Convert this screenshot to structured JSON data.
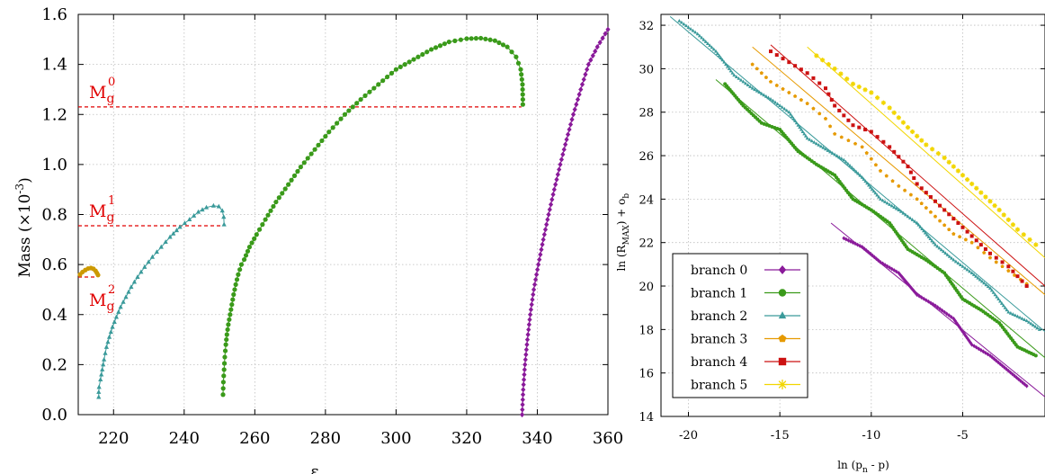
{
  "chart_data": [
    {
      "type": "scatter",
      "xlabel": "ε",
      "ylabel_main": "Mass (×10",
      "ylabel_exp": "-3",
      "ylabel_close": ")",
      "xlim": [
        210,
        360
      ],
      "ylim": [
        0,
        1.6
      ],
      "xticks": [
        220,
        240,
        260,
        280,
        300,
        320,
        340,
        360
      ],
      "yticks": [
        0.0,
        0.2,
        0.4,
        0.6,
        0.8,
        1.0,
        1.2,
        1.4,
        1.6
      ],
      "ytick_labels": [
        "0.0",
        "0.2",
        "0.4",
        "0.6",
        "0.8",
        "1.0",
        "1.2",
        "1.4",
        "1.6"
      ],
      "grid": true,
      "reference_lines": [
        {
          "label_main": "M",
          "label_sub": "g",
          "label_sup": "0",
          "value": 1.23,
          "x_start": 210,
          "x_end": 335.5,
          "color": "#e00000"
        },
        {
          "label_main": "M",
          "label_sub": "g",
          "label_sup": "1",
          "value": 0.755,
          "x_start": 210,
          "x_end": 251,
          "color": "#e00000"
        },
        {
          "label_main": "M",
          "label_sub": "g",
          "label_sup": "2",
          "value": 0.55,
          "x_start": 210,
          "x_end": 215,
          "color": "#e00000"
        }
      ],
      "series": [
        {
          "marker": "circle",
          "color": "#cc9900",
          "points": [
            [
              210.5,
              0.56
            ],
            [
              211.2,
              0.57
            ],
            [
              212.0,
              0.578
            ],
            [
              212.8,
              0.584
            ],
            [
              213.6,
              0.586
            ],
            [
              214.3,
              0.583
            ],
            [
              214.9,
              0.575
            ],
            [
              215.3,
              0.566
            ],
            [
              215.6,
              0.558
            ]
          ]
        },
        {
          "marker": "triangle",
          "color": "#3a9a9a",
          "points": [
            [
              215.8,
              0.07
            ],
            [
              215.8,
              0.09
            ],
            [
              215.9,
              0.11
            ],
            [
              216.3,
              0.14
            ],
            [
              216.8,
              0.18
            ],
            [
              217.3,
              0.22
            ],
            [
              218.0,
              0.27
            ],
            [
              218.8,
              0.31
            ],
            [
              219.7,
              0.35
            ],
            [
              220.8,
              0.39
            ],
            [
              222.0,
              0.43
            ],
            [
              223.5,
              0.47
            ],
            [
              225.0,
              0.51
            ],
            [
              226.8,
              0.55
            ],
            [
              228.8,
              0.59
            ],
            [
              231.0,
              0.63
            ],
            [
              233.5,
              0.67
            ],
            [
              236.0,
              0.71
            ],
            [
              238.8,
              0.75
            ],
            [
              241.5,
              0.78
            ],
            [
              244.0,
              0.81
            ],
            [
              246.3,
              0.828
            ],
            [
              248.3,
              0.835
            ],
            [
              249.8,
              0.832
            ],
            [
              250.8,
              0.815
            ],
            [
              251.2,
              0.79
            ],
            [
              251.3,
              0.76
            ]
          ]
        },
        {
          "marker": "circle",
          "color": "#3a9a1a",
          "points": [
            [
              251.0,
              0.08
            ],
            [
              251.1,
              0.13
            ],
            [
              251.3,
              0.18
            ],
            [
              251.5,
              0.23
            ],
            [
              251.8,
              0.28
            ],
            [
              252.1,
              0.32
            ],
            [
              252.5,
              0.36
            ],
            [
              253.0,
              0.4
            ],
            [
              253.5,
              0.44
            ],
            [
              254.0,
              0.48
            ],
            [
              254.6,
              0.52
            ],
            [
              255.3,
              0.56
            ],
            [
              256.2,
              0.6
            ],
            [
              257.0,
              0.62
            ],
            [
              258.5,
              0.67
            ],
            [
              260.5,
              0.72
            ],
            [
              263.0,
              0.78
            ],
            [
              266.0,
              0.85
            ],
            [
              269.5,
              0.92
            ],
            [
              273.0,
              0.99
            ],
            [
              277.0,
              1.06
            ],
            [
              281.0,
              1.13
            ],
            [
              285.5,
              1.2
            ],
            [
              290.0,
              1.26
            ],
            [
              295.0,
              1.32
            ],
            [
              300.0,
              1.38
            ],
            [
              305.0,
              1.42
            ],
            [
              310.0,
              1.46
            ],
            [
              315.0,
              1.49
            ],
            [
              320.0,
              1.503
            ],
            [
              324.0,
              1.505
            ],
            [
              328.0,
              1.495
            ],
            [
              331.5,
              1.47
            ],
            [
              334.0,
              1.43
            ],
            [
              335.3,
              1.38
            ],
            [
              335.8,
              1.32
            ],
            [
              335.9,
              1.26
            ],
            [
              335.9,
              1.24
            ]
          ]
        },
        {
          "marker": "diamond",
          "color": "#8a1a9a",
          "points": [
            [
              335.7,
              0.0
            ],
            [
              336.0,
              0.1
            ],
            [
              336.5,
              0.2
            ],
            [
              337.2,
              0.3
            ],
            [
              338.0,
              0.4
            ],
            [
              339.0,
              0.5
            ],
            [
              340.3,
              0.6
            ],
            [
              341.7,
              0.7
            ],
            [
              343.2,
              0.8
            ],
            [
              344.8,
              0.9
            ],
            [
              346.5,
              1.0
            ],
            [
              348.3,
              1.1
            ],
            [
              350.2,
              1.2
            ],
            [
              352.3,
              1.3
            ],
            [
              354.5,
              1.4
            ],
            [
              357.0,
              1.47
            ],
            [
              360.0,
              1.54
            ]
          ]
        }
      ]
    },
    {
      "type": "scatter",
      "xlabel_main": "ln (p",
      "xlabel_sub": "n",
      "xlabel_close": " - p)",
      "ylabel_main": "ln (R",
      "ylabel_sub": "MAX",
      "ylabel_mid": ") + o",
      "ylabel_sub2": "b",
      "xlim": [
        -21.5,
        -0.5
      ],
      "ylim": [
        14,
        32.5
      ],
      "xticks": [
        -20,
        -15,
        -10,
        -5
      ],
      "xtick_labels": [
        "-20",
        "-15",
        "-10",
        "-5"
      ],
      "yticks": [
        14,
        16,
        18,
        20,
        22,
        24,
        26,
        28,
        30,
        32
      ],
      "ytick_labels": [
        "14",
        "16",
        "18",
        "20",
        "22",
        "24",
        "26",
        "28",
        "30",
        "32"
      ],
      "grid": true,
      "legend_position": "bottom-left",
      "series": [
        {
          "name": "branch 0",
          "marker": "diamond",
          "color": "#8a1a9a",
          "points": [
            [
              -11.5,
              22.2
            ],
            [
              -10.5,
              21.8
            ],
            [
              -9.5,
              21.1
            ],
            [
              -8.5,
              20.6
            ],
            [
              -7.5,
              19.6
            ],
            [
              -6.5,
              19.1
            ],
            [
              -5.5,
              18.5
            ],
            [
              -4.5,
              17.3
            ],
            [
              -3.5,
              16.8
            ],
            [
              -2.5,
              16.1
            ],
            [
              -1.5,
              15.4
            ]
          ],
          "fit": [
            [
              -12.2,
              22.9
            ],
            [
              -0.5,
              14.9
            ]
          ]
        },
        {
          "name": "branch 1",
          "marker": "circle",
          "color": "#3a9a1a",
          "points": [
            [
              -18.0,
              29.3
            ],
            [
              -17.0,
              28.3
            ],
            [
              -16.0,
              27.5
            ],
            [
              -15.0,
              27.2
            ],
            [
              -14.0,
              26.2
            ],
            [
              -13.0,
              25.6
            ],
            [
              -12.0,
              25.1
            ],
            [
              -11.0,
              24.0
            ],
            [
              -10.0,
              23.5
            ],
            [
              -9.0,
              22.9
            ],
            [
              -8.0,
              21.7
            ],
            [
              -7.0,
              21.2
            ],
            [
              -6.0,
              20.6
            ],
            [
              -5.0,
              19.4
            ],
            [
              -4.0,
              18.9
            ],
            [
              -3.0,
              18.3
            ],
            [
              -2.0,
              17.2
            ],
            [
              -1.0,
              16.8
            ]
          ],
          "fit": [
            [
              -18.5,
              29.5
            ],
            [
              -0.5,
              16.7
            ]
          ]
        },
        {
          "name": "branch 2",
          "marker": "triangle",
          "color": "#3a9a9a",
          "points": [
            [
              -20.5,
              32.2
            ],
            [
              -19.5,
              31.6
            ],
            [
              -18.5,
              30.8
            ],
            [
              -17.5,
              29.7
            ],
            [
              -16.5,
              29.1
            ],
            [
              -15.5,
              28.6
            ],
            [
              -14.5,
              28.0
            ],
            [
              -13.5,
              26.8
            ],
            [
              -12.5,
              26.3
            ],
            [
              -11.5,
              25.8
            ],
            [
              -10.5,
              25.0
            ],
            [
              -9.5,
              24.0
            ],
            [
              -8.5,
              23.5
            ],
            [
              -7.5,
              22.9
            ],
            [
              -6.5,
              21.9
            ],
            [
              -5.5,
              21.2
            ],
            [
              -4.5,
              20.6
            ],
            [
              -3.5,
              19.9
            ],
            [
              -2.5,
              18.8
            ],
            [
              -1.5,
              18.4
            ],
            [
              -0.8,
              18.0
            ]
          ],
          "fit": [
            [
              -21.0,
              32.4
            ],
            [
              -0.5,
              17.9
            ]
          ]
        },
        {
          "name": "branch 3",
          "marker": "pentagon",
          "color": "#e69a00",
          "points": [
            [
              -16.5,
              30.2
            ],
            [
              -15.5,
              29.4
            ],
            [
              -14.5,
              28.9
            ],
            [
              -13.5,
              28.4
            ],
            [
              -12.5,
              27.7
            ],
            [
              -12.0,
              27.0
            ],
            [
              -10.5,
              26.4
            ],
            [
              -9.5,
              25.3
            ],
            [
              -8.5,
              24.6
            ],
            [
              -7.5,
              24.0
            ],
            [
              -6.5,
              23.2
            ],
            [
              -5.5,
              22.4
            ],
            [
              -4.5,
              22.0
            ],
            [
              -3.5,
              21.3
            ],
            [
              -2.5,
              20.7
            ],
            [
              -1.5,
              20.1
            ]
          ],
          "fit": [
            [
              -16.5,
              31.0
            ],
            [
              -0.5,
              19.6
            ]
          ]
        },
        {
          "name": "branch 4",
          "marker": "square",
          "color": "#cc1111",
          "points": [
            [
              -15.5,
              30.8
            ],
            [
              -14.5,
              30.3
            ],
            [
              -13.5,
              29.8
            ],
            [
              -12.5,
              29.1
            ],
            [
              -12.0,
              28.3
            ],
            [
              -11.0,
              27.4
            ],
            [
              -10.0,
              27.1
            ],
            [
              -9.0,
              26.4
            ],
            [
              -8.0,
              25.5
            ],
            [
              -7.5,
              24.7
            ],
            [
              -6.5,
              23.9
            ],
            [
              -5.5,
              23.1
            ],
            [
              -4.5,
              22.3
            ],
            [
              -3.5,
              21.5
            ],
            [
              -2.5,
              20.9
            ],
            [
              -1.5,
              20.0
            ]
          ],
          "fit": [
            [
              -15.5,
              31.1
            ],
            [
              -0.5,
              20.0
            ]
          ]
        },
        {
          "name": "branch 5",
          "marker": "star",
          "color": "#f2d600",
          "points": [
            [
              -13.0,
              30.6
            ],
            [
              -12.0,
              30.0
            ],
            [
              -11.0,
              29.3
            ],
            [
              -10.0,
              28.9
            ],
            [
              -9.0,
              28.2
            ],
            [
              -8.0,
              27.3
            ],
            [
              -7.0,
              26.5
            ],
            [
              -6.0,
              25.9
            ],
            [
              -5.0,
              25.1
            ],
            [
              -4.0,
              24.3
            ],
            [
              -3.0,
              23.5
            ],
            [
              -2.0,
              22.6
            ],
            [
              -1.0,
              21.9
            ]
          ],
          "fit": [
            [
              -13.5,
              31.0
            ],
            [
              -0.5,
              21.3
            ]
          ]
        }
      ]
    }
  ]
}
